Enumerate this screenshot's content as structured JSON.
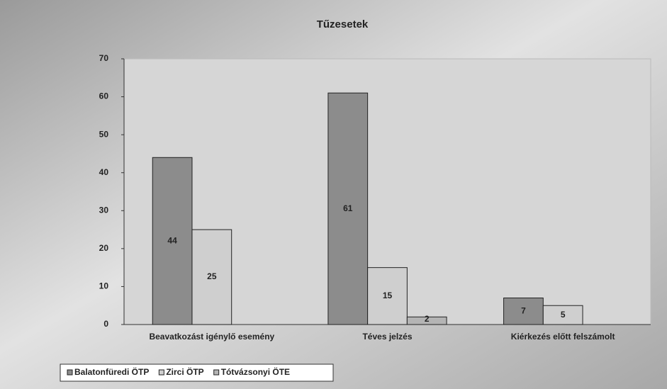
{
  "chart_data": {
    "type": "bar",
    "title": "Tűzesetek",
    "categories": [
      "Beavatkozást igénylő esemény",
      "Téves jelzés",
      "Kiérkezés előtt felszámolt"
    ],
    "series": [
      {
        "name": "Balatonfüredi ÖTP",
        "color": "#8c8c8c",
        "values": [
          44,
          61,
          7
        ]
      },
      {
        "name": "Zirci ÖTP",
        "color": "#cfcfcf",
        "values": [
          25,
          15,
          5
        ]
      },
      {
        "name": "Tótvázsonyi ÖTE",
        "color": "#b4b4b4",
        "values": [
          null,
          2,
          null
        ]
      }
    ],
    "ylim": [
      0,
      70
    ],
    "yticks": [
      0,
      10,
      20,
      30,
      40,
      50,
      60,
      70
    ],
    "grid": false,
    "legend": "bottom"
  }
}
